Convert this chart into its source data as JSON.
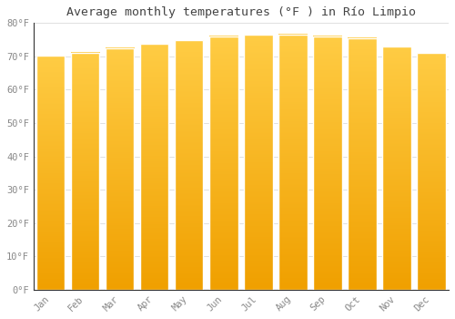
{
  "title": "Average monthly temperatures (°F ) in Río Limpio",
  "months": [
    "Jan",
    "Feb",
    "Mar",
    "Apr",
    "May",
    "Jun",
    "Jul",
    "Aug",
    "Sep",
    "Oct",
    "Nov",
    "Dec"
  ],
  "values": [
    70.2,
    71.1,
    72.5,
    73.8,
    74.8,
    76.1,
    76.5,
    76.6,
    76.1,
    75.5,
    73.0,
    71.0
  ],
  "bar_color_top": "#FFCC44",
  "bar_color_bottom": "#F0A000",
  "ylim": [
    0,
    80
  ],
  "yticks": [
    0,
    10,
    20,
    30,
    40,
    50,
    60,
    70,
    80
  ],
  "ytick_labels": [
    "0°F",
    "10°F",
    "20°F",
    "30°F",
    "40°F",
    "50°F",
    "60°F",
    "70°F",
    "80°F"
  ],
  "bg_color": "#FFFFFF",
  "grid_color": "#E0E0E0",
  "title_fontsize": 9.5,
  "tick_fontsize": 7.5,
  "font_family": "monospace",
  "bar_width": 0.82
}
